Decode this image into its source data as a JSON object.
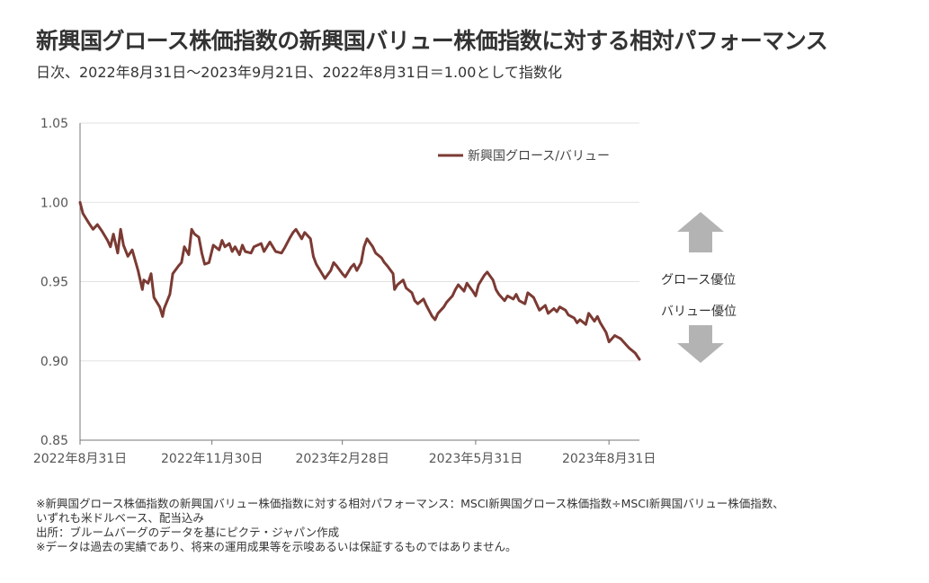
{
  "title": "新興国グロース株価指数の新興国バリュー株価指数に対する相対パフォーマンス",
  "subtitle": "日次、2022年8月31日～2023年9月21日、2022年8月31日＝1.00として指数化",
  "indicators": {
    "up_label": "グロース優位",
    "down_label": "バリュー優位",
    "arrow_color": "#b3b3b3",
    "up_icon": "arrow-up-icon",
    "down_icon": "arrow-down-icon"
  },
  "notes": [
    "※新興国グロース株価指数の新興国バリュー株価指数に対する相対パフォーマンス：MSCI新興国グロース株価指数÷MSCI新興国バリュー株価指数、",
    "いずれも米ドルベース、配当込み",
    "出所：ブルームバーグのデータを基にピクテ・ジャパン作成",
    "※データは過去の実績であり、将来の運用成果等を示唆あるいは保証するものではありません。"
  ],
  "chart_data": {
    "type": "line",
    "title": "新興国グロース株価指数の新興国バリュー株価指数に対する相対パフォーマンス",
    "xlabel": "",
    "ylabel": "",
    "x_range": [
      "2022-08-31",
      "2023-09-21"
    ],
    "ylim": [
      0.85,
      1.05
    ],
    "yticks": [
      "1.05",
      "1.00",
      "0.95",
      "0.90",
      "0.85"
    ],
    "xticks": [
      {
        "date": "2022-08-31",
        "label": "2022年8月31日"
      },
      {
        "date": "2022-11-30",
        "label": "2022年11月30日"
      },
      {
        "date": "2023-02-28",
        "label": "2023年2月28日"
      },
      {
        "date": "2023-05-31",
        "label": "2023年5月31日"
      },
      {
        "date": "2023-08-31",
        "label": "2023年8月31日"
      }
    ],
    "grid": "horizontal",
    "legend_position": "top-right",
    "series": [
      {
        "name": "新興国グロース/バリュー",
        "color": "#7b3a33",
        "points": [
          [
            "2022-08-31",
            1.0
          ],
          [
            "2022-09-02",
            0.993
          ],
          [
            "2022-09-06",
            0.987
          ],
          [
            "2022-09-09",
            0.983
          ],
          [
            "2022-09-12",
            0.986
          ],
          [
            "2022-09-15",
            0.982
          ],
          [
            "2022-09-19",
            0.976
          ],
          [
            "2022-09-21",
            0.972
          ],
          [
            "2022-09-23",
            0.98
          ],
          [
            "2022-09-26",
            0.968
          ],
          [
            "2022-09-28",
            0.983
          ],
          [
            "2022-09-30",
            0.973
          ],
          [
            "2022-10-03",
            0.966
          ],
          [
            "2022-10-06",
            0.97
          ],
          [
            "2022-10-10",
            0.957
          ],
          [
            "2022-10-13",
            0.945
          ],
          [
            "2022-10-14",
            0.951
          ],
          [
            "2022-10-17",
            0.949
          ],
          [
            "2022-10-19",
            0.955
          ],
          [
            "2022-10-21",
            0.94
          ],
          [
            "2022-10-25",
            0.934
          ],
          [
            "2022-10-27",
            0.928
          ],
          [
            "2022-10-28",
            0.933
          ],
          [
            "2022-11-01",
            0.942
          ],
          [
            "2022-11-03",
            0.955
          ],
          [
            "2022-11-07",
            0.96
          ],
          [
            "2022-11-09",
            0.962
          ],
          [
            "2022-11-11",
            0.972
          ],
          [
            "2022-11-14",
            0.967
          ],
          [
            "2022-11-16",
            0.983
          ],
          [
            "2022-11-18",
            0.98
          ],
          [
            "2022-11-21",
            0.978
          ],
          [
            "2022-11-23",
            0.968
          ],
          [
            "2022-11-25",
            0.961
          ],
          [
            "2022-11-28",
            0.962
          ],
          [
            "2022-12-01",
            0.973
          ],
          [
            "2022-12-05",
            0.97
          ],
          [
            "2022-12-07",
            0.976
          ],
          [
            "2022-12-09",
            0.972
          ],
          [
            "2022-12-12",
            0.974
          ],
          [
            "2022-12-14",
            0.969
          ],
          [
            "2022-12-16",
            0.972
          ],
          [
            "2022-12-19",
            0.967
          ],
          [
            "2022-12-21",
            0.973
          ],
          [
            "2022-12-23",
            0.969
          ],
          [
            "2022-12-27",
            0.968
          ],
          [
            "2022-12-29",
            0.972
          ],
          [
            "2023-01-03",
            0.974
          ],
          [
            "2023-01-05",
            0.969
          ],
          [
            "2023-01-09",
            0.975
          ],
          [
            "2023-01-11",
            0.972
          ],
          [
            "2023-01-13",
            0.969
          ],
          [
            "2023-01-17",
            0.968
          ],
          [
            "2023-01-19",
            0.971
          ],
          [
            "2023-01-23",
            0.978
          ],
          [
            "2023-01-25",
            0.981
          ],
          [
            "2023-01-27",
            0.983
          ],
          [
            "2023-01-31",
            0.977
          ],
          [
            "2023-02-02",
            0.981
          ],
          [
            "2023-02-06",
            0.977
          ],
          [
            "2023-02-08",
            0.966
          ],
          [
            "2023-02-10",
            0.961
          ],
          [
            "2023-02-14",
            0.955
          ],
          [
            "2023-02-16",
            0.952
          ],
          [
            "2023-02-20",
            0.957
          ],
          [
            "2023-02-22",
            0.962
          ],
          [
            "2023-02-24",
            0.96
          ],
          [
            "2023-02-28",
            0.955
          ],
          [
            "2023-03-02",
            0.953
          ],
          [
            "2023-03-06",
            0.959
          ],
          [
            "2023-03-08",
            0.961
          ],
          [
            "2023-03-10",
            0.957
          ],
          [
            "2023-03-13",
            0.962
          ],
          [
            "2023-03-15",
            0.972
          ],
          [
            "2023-03-17",
            0.977
          ],
          [
            "2023-03-21",
            0.972
          ],
          [
            "2023-03-23",
            0.968
          ],
          [
            "2023-03-27",
            0.965
          ],
          [
            "2023-03-29",
            0.962
          ],
          [
            "2023-03-31",
            0.96
          ],
          [
            "2023-04-04",
            0.955
          ],
          [
            "2023-04-05",
            0.945
          ],
          [
            "2023-04-07",
            0.948
          ],
          [
            "2023-04-11",
            0.951
          ],
          [
            "2023-04-13",
            0.946
          ],
          [
            "2023-04-17",
            0.943
          ],
          [
            "2023-04-19",
            0.938
          ],
          [
            "2023-04-21",
            0.936
          ],
          [
            "2023-04-25",
            0.939
          ],
          [
            "2023-04-27",
            0.935
          ],
          [
            "2023-05-01",
            0.928
          ],
          [
            "2023-05-03",
            0.926
          ],
          [
            "2023-05-05",
            0.93
          ],
          [
            "2023-05-09",
            0.934
          ],
          [
            "2023-05-11",
            0.937
          ],
          [
            "2023-05-15",
            0.941
          ],
          [
            "2023-05-17",
            0.945
          ],
          [
            "2023-05-19",
            0.948
          ],
          [
            "2023-05-23",
            0.944
          ],
          [
            "2023-05-25",
            0.949
          ],
          [
            "2023-05-29",
            0.944
          ],
          [
            "2023-05-31",
            0.941
          ],
          [
            "2023-06-02",
            0.948
          ],
          [
            "2023-06-06",
            0.954
          ],
          [
            "2023-06-08",
            0.956
          ],
          [
            "2023-06-12",
            0.951
          ],
          [
            "2023-06-14",
            0.945
          ],
          [
            "2023-06-16",
            0.942
          ],
          [
            "2023-06-20",
            0.938
          ],
          [
            "2023-06-22",
            0.941
          ],
          [
            "2023-06-26",
            0.939
          ],
          [
            "2023-06-28",
            0.942
          ],
          [
            "2023-06-30",
            0.938
          ],
          [
            "2023-07-04",
            0.936
          ],
          [
            "2023-07-06",
            0.943
          ],
          [
            "2023-07-10",
            0.94
          ],
          [
            "2023-07-12",
            0.936
          ],
          [
            "2023-07-14",
            0.932
          ],
          [
            "2023-07-18",
            0.935
          ],
          [
            "2023-07-20",
            0.93
          ],
          [
            "2023-07-24",
            0.933
          ],
          [
            "2023-07-26",
            0.931
          ],
          [
            "2023-07-28",
            0.934
          ],
          [
            "2023-08-01",
            0.932
          ],
          [
            "2023-08-03",
            0.929
          ],
          [
            "2023-08-07",
            0.927
          ],
          [
            "2023-08-09",
            0.924
          ],
          [
            "2023-08-11",
            0.926
          ],
          [
            "2023-08-15",
            0.923
          ],
          [
            "2023-08-17",
            0.93
          ],
          [
            "2023-08-21",
            0.925
          ],
          [
            "2023-08-23",
            0.928
          ],
          [
            "2023-08-25",
            0.924
          ],
          [
            "2023-08-29",
            0.918
          ],
          [
            "2023-08-31",
            0.912
          ],
          [
            "2023-09-04",
            0.916
          ],
          [
            "2023-09-06",
            0.915
          ],
          [
            "2023-09-08",
            0.914
          ],
          [
            "2023-09-12",
            0.91
          ],
          [
            "2023-09-14",
            0.908
          ],
          [
            "2023-09-18",
            0.905
          ],
          [
            "2023-09-21",
            0.901
          ]
        ]
      }
    ]
  }
}
